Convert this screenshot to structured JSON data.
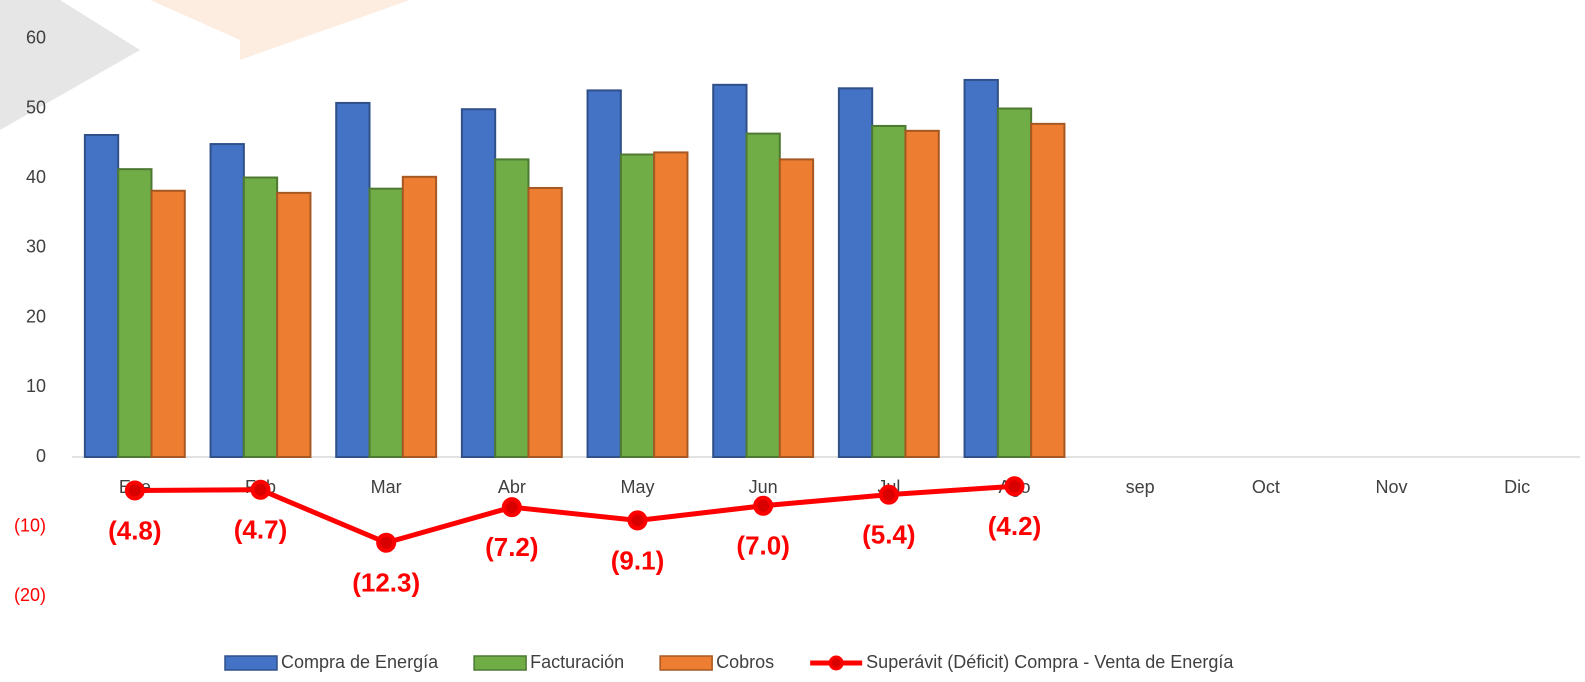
{
  "chart_data": {
    "type": "bar",
    "categories": [
      "Ene",
      "Feb",
      "Mar",
      "Abr",
      "May",
      "Jun",
      "Jul",
      "Ago",
      "sep",
      "Oct",
      "Nov",
      "Dic"
    ],
    "series": [
      {
        "name": "Compra de Energía",
        "color": "#4472c4",
        "values": [
          46.2,
          44.9,
          50.8,
          49.9,
          52.6,
          53.4,
          52.9,
          54.1,
          null,
          null,
          null,
          null
        ]
      },
      {
        "name": "Facturación",
        "color": "#70ad47",
        "values": [
          41.3,
          40.1,
          38.5,
          42.7,
          43.4,
          46.4,
          47.5,
          50.0,
          null,
          null,
          null,
          null
        ]
      },
      {
        "name": "Cobros",
        "color": "#ed7d31",
        "values": [
          38.2,
          37.9,
          40.2,
          38.6,
          43.7,
          42.7,
          46.8,
          47.8,
          null,
          null,
          null,
          null
        ]
      },
      {
        "name": "Superávit (Déficit) Compra - Venta de Energía",
        "type": "line",
        "color": "#ff0000",
        "values": [
          -4.8,
          -4.7,
          -12.3,
          -7.2,
          -9.1,
          -7.0,
          -5.4,
          -4.2,
          null,
          null,
          null,
          null
        ],
        "value_labels": [
          "(4.8)",
          "(4.7)",
          "(12.3)",
          "(7.2)",
          "(9.1)",
          "(7.0)",
          "(5.4)",
          "(4.2)",
          null,
          null,
          null,
          null
        ]
      }
    ],
    "ylim": [
      -30,
      62.7
    ],
    "yticks": [
      {
        "value": -20,
        "label": "(20)"
      },
      {
        "value": -10,
        "label": "(10)"
      },
      0,
      10,
      20,
      30,
      40,
      50,
      60
    ],
    "legend": "bottom"
  }
}
